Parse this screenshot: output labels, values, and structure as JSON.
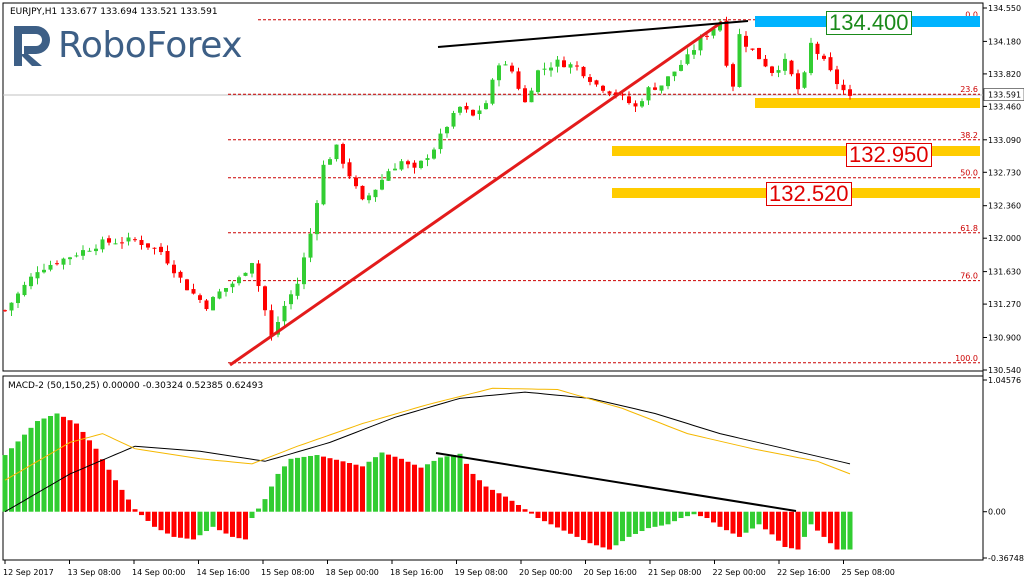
{
  "header": {
    "symbol_line": "EURJPY,H1  133.677 133.694 133.521 133.591"
  },
  "logo": {
    "text": "RoboForex"
  },
  "colors": {
    "bull": "#32cd32",
    "bear": "#ff0000",
    "fib_line": "#cc0000",
    "zone_blue": "#00b3ff",
    "zone_yellow": "#ffcc00",
    "trend_red": "#e31b1b",
    "trend_black": "#000000",
    "signal": "#f5b800",
    "macd_main": "#000000",
    "grid": "#c8c8c8"
  },
  "price_axis": {
    "labels": [
      "134.550",
      "134.180",
      "133.820",
      "133.460",
      "133.090",
      "132.730",
      "132.360",
      "132.000",
      "131.630",
      "131.270",
      "130.900",
      "130.540"
    ],
    "current_price": "133.591"
  },
  "fib_levels": [
    {
      "label": "0.0",
      "price": 134.42
    },
    {
      "label": "23.6",
      "price": 133.595
    },
    {
      "label": "38.2",
      "price": 133.09
    },
    {
      "label": "50.0",
      "price": 132.67
    },
    {
      "label": "61.8",
      "price": 132.06
    },
    {
      "label": "76.0",
      "price": 131.53
    },
    {
      "label": "100.0",
      "price": 130.62
    }
  ],
  "zones": [
    {
      "label": "134.400",
      "color": "blue"
    },
    {
      "label": "132.950",
      "color": "yellow"
    },
    {
      "label": "132.520",
      "color": "yellow"
    }
  ],
  "macd": {
    "title": "MACD-2 (50,150,25) 0.00000 -0.30324 0.52385 0.62493",
    "axis_labels": [
      "1.04576",
      "0.00",
      "-0.36748"
    ]
  },
  "time_axis": {
    "labels": [
      "12 Sep 2017",
      "13 Sep 08:00",
      "14 Sep 00:00",
      "14 Sep 16:00",
      "15 Sep 08:00",
      "18 Sep 00:00",
      "18 Sep 16:00",
      "19 Sep 08:00",
      "20 Sep 00:00",
      "20 Sep 16:00",
      "21 Sep 08:00",
      "22 Sep 00:00",
      "22 Sep 16:00",
      "25 Sep 08:00"
    ]
  },
  "chart_data": {
    "type": "candlestick",
    "y_range": [
      130.54,
      134.55
    ],
    "price_path": [
      [
        0,
        131.2
      ],
      [
        5,
        131.65
      ],
      [
        10,
        131.8
      ],
      [
        15,
        131.95
      ],
      [
        20,
        131.98
      ],
      [
        24,
        131.85
      ],
      [
        28,
        131.45
      ],
      [
        31,
        131.25
      ],
      [
        33,
        131.4
      ],
      [
        36,
        131.55
      ],
      [
        38,
        131.75
      ],
      [
        40,
        131.2
      ],
      [
        41,
        130.9
      ],
      [
        43,
        131.25
      ],
      [
        45,
        131.5
      ],
      [
        47,
        132.05
      ],
      [
        49,
        132.8
      ],
      [
        51,
        133.0
      ],
      [
        53,
        132.7
      ],
      [
        55,
        132.4
      ],
      [
        57,
        132.55
      ],
      [
        59,
        132.75
      ],
      [
        61,
        132.85
      ],
      [
        63,
        132.75
      ],
      [
        66,
        133.0
      ],
      [
        68,
        133.25
      ],
      [
        70,
        133.45
      ],
      [
        72,
        133.35
      ],
      [
        74,
        133.5
      ],
      [
        76,
        133.95
      ],
      [
        78,
        133.85
      ],
      [
        80,
        133.5
      ],
      [
        82,
        133.85
      ],
      [
        85,
        133.95
      ],
      [
        88,
        133.9
      ],
      [
        91,
        133.7
      ],
      [
        94,
        133.6
      ],
      [
        97,
        133.45
      ],
      [
        99,
        133.65
      ],
      [
        101,
        133.7
      ],
      [
        103,
        133.85
      ],
      [
        105,
        134.0
      ],
      [
        107,
        134.2
      ],
      [
        109,
        134.33
      ],
      [
        110,
        134.4
      ],
      [
        111,
        133.95
      ],
      [
        112,
        133.7
      ],
      [
        113,
        134.25
      ],
      [
        114,
        134.15
      ],
      [
        116,
        134.0
      ],
      [
        118,
        133.85
      ],
      [
        120,
        133.95
      ],
      [
        122,
        133.65
      ],
      [
        123,
        133.8
      ],
      [
        124,
        134.15
      ],
      [
        126,
        133.95
      ],
      [
        128,
        133.72
      ],
      [
        130,
        133.55
      ]
    ],
    "macd_hist_path": [
      [
        0,
        0.45
      ],
      [
        5,
        0.72
      ],
      [
        8,
        0.78
      ],
      [
        11,
        0.7
      ],
      [
        14,
        0.5
      ],
      [
        17,
        0.25
      ],
      [
        20,
        0.02
      ],
      [
        23,
        -0.12
      ],
      [
        26,
        -0.2
      ],
      [
        29,
        -0.22
      ],
      [
        32,
        -0.12
      ],
      [
        35,
        -0.2
      ],
      [
        37,
        -0.22
      ],
      [
        38,
        -0.05
      ],
      [
        40,
        0.1
      ],
      [
        42,
        0.3
      ],
      [
        44,
        0.42
      ],
      [
        48,
        0.45
      ],
      [
        52,
        0.4
      ],
      [
        55,
        0.36
      ],
      [
        58,
        0.47
      ],
      [
        61,
        0.42
      ],
      [
        64,
        0.35
      ],
      [
        67,
        0.43
      ],
      [
        70,
        0.46
      ],
      [
        72,
        0.3
      ],
      [
        74,
        0.2
      ],
      [
        77,
        0.12
      ],
      [
        80,
        0.02
      ],
      [
        82,
        -0.05
      ],
      [
        86,
        -0.15
      ],
      [
        90,
        -0.25
      ],
      [
        93,
        -0.3
      ],
      [
        96,
        -0.2
      ],
      [
        99,
        -0.13
      ],
      [
        102,
        -0.1
      ],
      [
        104,
        -0.05
      ],
      [
        106,
        -0.02
      ],
      [
        108,
        -0.05
      ],
      [
        110,
        -0.12
      ],
      [
        113,
        -0.2
      ],
      [
        116,
        -0.1
      ],
      [
        118,
        -0.18
      ],
      [
        120,
        -0.28
      ],
      [
        122,
        -0.3
      ],
      [
        124,
        -0.1
      ],
      [
        126,
        -0.2
      ],
      [
        128,
        -0.3
      ],
      [
        130,
        -0.3
      ]
    ],
    "macd_main_path": [
      [
        0,
        0.0
      ],
      [
        10,
        0.3
      ],
      [
        20,
        0.52
      ],
      [
        30,
        0.48
      ],
      [
        40,
        0.4
      ],
      [
        50,
        0.55
      ],
      [
        60,
        0.75
      ],
      [
        70,
        0.9
      ],
      [
        80,
        0.95
      ],
      [
        90,
        0.9
      ],
      [
        100,
        0.78
      ],
      [
        110,
        0.62
      ],
      [
        120,
        0.5
      ],
      [
        130,
        0.38
      ]
    ],
    "macd_signal_path": [
      [
        0,
        0.25
      ],
      [
        10,
        0.55
      ],
      [
        15,
        0.62
      ],
      [
        20,
        0.5
      ],
      [
        30,
        0.42
      ],
      [
        38,
        0.38
      ],
      [
        45,
        0.52
      ],
      [
        55,
        0.7
      ],
      [
        65,
        0.85
      ],
      [
        75,
        0.98
      ],
      [
        85,
        0.97
      ],
      [
        95,
        0.82
      ],
      [
        105,
        0.62
      ],
      [
        115,
        0.5
      ],
      [
        125,
        0.4
      ],
      [
        130,
        0.3
      ]
    ],
    "macd_y_range": [
      -0.36748,
      1.04576
    ],
    "candle_count": 131
  }
}
